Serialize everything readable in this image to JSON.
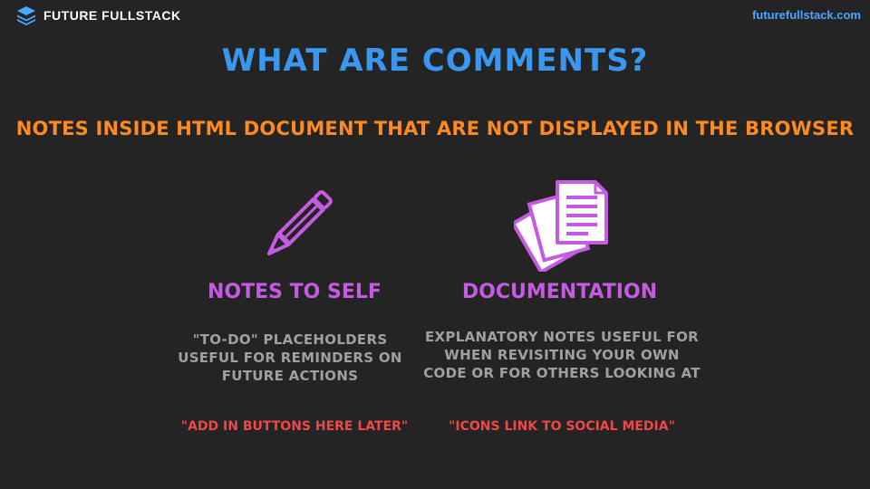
{
  "header": {
    "brand_name": "FUTURE FULLSTACK",
    "site_url": "futurefullstack.com",
    "logo_icon": "stacked-layers-icon"
  },
  "slide": {
    "title": "WHAT ARE COMMENTS?",
    "subtitle": "NOTES INSIDE HTML DOCUMENT THAT ARE NOT DISPLAYED IN THE BROWSER",
    "columns": [
      {
        "icon": "pencil-icon",
        "heading": "NOTES TO SELF",
        "description": "\"TO-DO\" PLACEHOLDERS USEFUL FOR REMINDERS ON FUTURE ACTIONS",
        "example": "\"ADD IN BUTTONS HERE LATER\""
      },
      {
        "icon": "documents-icon",
        "heading": "DOCUMENTATION",
        "description": "EXPLANATORY NOTES USEFUL FOR WHEN REVISITING YOUR OWN CODE OR FOR OTHERS LOOKING AT",
        "example": "\"ICONS LINK TO SOCIAL MEDIA\""
      }
    ]
  },
  "colors": {
    "background": "#242424",
    "title": "#3a97f0",
    "subtitle": "#ff8a1f",
    "heading": "#c55ae3",
    "description": "#a0a0a0",
    "example": "#f04848",
    "link": "#4aa8ff"
  }
}
